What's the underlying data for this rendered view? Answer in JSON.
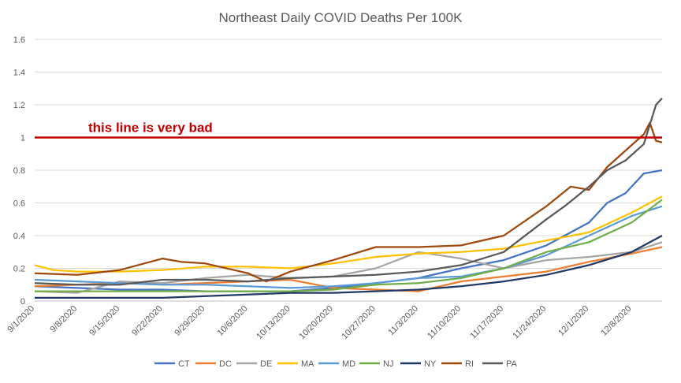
{
  "chart_data": {
    "type": "line",
    "title": "Northeast Daily COVID Deaths Per 100K",
    "xlabel": "",
    "ylabel": "",
    "ylim": [
      0,
      1.6
    ],
    "yticks": [
      0,
      0.2,
      0.4,
      0.6,
      0.8,
      1,
      1.2,
      1.4,
      1.6
    ],
    "ytick_labels": [
      "0",
      "0.2",
      "0.4",
      "0.6",
      "0.8",
      "1",
      "1.2",
      "1.4",
      "1.6"
    ],
    "x_tick_labels": [
      "9/1/2020",
      "9/8/2020",
      "9/15/2020",
      "9/22/2020",
      "9/29/2020",
      "10/6/2020",
      "10/13/2020",
      "10/20/2020",
      "10/27/2020",
      "11/3/2020",
      "11/10/2020",
      "11/17/2020",
      "11/24/2020",
      "12/1/2020",
      "12/8/2020"
    ],
    "x_start": "9/1/2020",
    "x_end": "12/13/2020",
    "grid": true,
    "legend_position": "bottom",
    "reference_line": {
      "value": 1,
      "label": "this line is very bad",
      "color": "#C00000"
    },
    "series": [
      {
        "name": "CT",
        "color": "#4472C4",
        "points": [
          [
            "9/1/2020",
            0.09
          ],
          [
            "9/8/2020",
            0.08
          ],
          [
            "9/15/2020",
            0.07
          ],
          [
            "9/22/2020",
            0.07
          ],
          [
            "9/29/2020",
            0.06
          ],
          [
            "10/6/2020",
            0.06
          ],
          [
            "10/13/2020",
            0.06
          ],
          [
            "10/20/2020",
            0.08
          ],
          [
            "10/27/2020",
            0.11
          ],
          [
            "11/3/2020",
            0.14
          ],
          [
            "11/10/2020",
            0.2
          ],
          [
            "11/17/2020",
            0.25
          ],
          [
            "11/24/2020",
            0.34
          ],
          [
            "12/1/2020",
            0.48
          ],
          [
            "12/4/2020",
            0.6
          ],
          [
            "12/7/2020",
            0.66
          ],
          [
            "12/10/2020",
            0.78
          ],
          [
            "12/13/2020",
            0.8
          ]
        ]
      },
      {
        "name": "DC",
        "color": "#ED7D31",
        "points": [
          [
            "9/1/2020",
            0.09
          ],
          [
            "9/8/2020",
            0.1
          ],
          [
            "9/15/2020",
            0.11
          ],
          [
            "9/22/2020",
            0.1
          ],
          [
            "9/29/2020",
            0.11
          ],
          [
            "10/6/2020",
            0.12
          ],
          [
            "10/13/2020",
            0.13
          ],
          [
            "10/20/2020",
            0.08
          ],
          [
            "10/27/2020",
            0.07
          ],
          [
            "11/3/2020",
            0.06
          ],
          [
            "11/10/2020",
            0.12
          ],
          [
            "11/17/2020",
            0.15
          ],
          [
            "11/24/2020",
            0.18
          ],
          [
            "12/1/2020",
            0.24
          ],
          [
            "12/8/2020",
            0.29
          ],
          [
            "12/13/2020",
            0.33
          ]
        ]
      },
      {
        "name": "DE",
        "color": "#A5A5A5",
        "points": [
          [
            "9/1/2020",
            0.06
          ],
          [
            "9/8/2020",
            0.05
          ],
          [
            "9/15/2020",
            0.12
          ],
          [
            "9/22/2020",
            0.11
          ],
          [
            "9/29/2020",
            0.14
          ],
          [
            "10/6/2020",
            0.16
          ],
          [
            "10/13/2020",
            0.14
          ],
          [
            "10/20/2020",
            0.15
          ],
          [
            "10/27/2020",
            0.2
          ],
          [
            "11/3/2020",
            0.3
          ],
          [
            "11/10/2020",
            0.26
          ],
          [
            "11/17/2020",
            0.2
          ],
          [
            "11/24/2020",
            0.25
          ],
          [
            "12/1/2020",
            0.27
          ],
          [
            "12/8/2020",
            0.3
          ],
          [
            "12/13/2020",
            0.36
          ]
        ]
      },
      {
        "name": "MA",
        "color": "#FFC000",
        "points": [
          [
            "9/1/2020",
            0.22
          ],
          [
            "9/4/2020",
            0.19
          ],
          [
            "9/8/2020",
            0.18
          ],
          [
            "9/15/2020",
            0.18
          ],
          [
            "9/22/2020",
            0.19
          ],
          [
            "9/29/2020",
            0.21
          ],
          [
            "10/6/2020",
            0.21
          ],
          [
            "10/13/2020",
            0.2
          ],
          [
            "10/20/2020",
            0.23
          ],
          [
            "10/27/2020",
            0.27
          ],
          [
            "11/3/2020",
            0.29
          ],
          [
            "11/10/2020",
            0.3
          ],
          [
            "11/17/2020",
            0.32
          ],
          [
            "11/24/2020",
            0.37
          ],
          [
            "12/1/2020",
            0.42
          ],
          [
            "12/8/2020",
            0.54
          ],
          [
            "12/13/2020",
            0.64
          ]
        ]
      },
      {
        "name": "MD",
        "color": "#5B9BD5",
        "points": [
          [
            "9/1/2020",
            0.13
          ],
          [
            "9/8/2020",
            0.12
          ],
          [
            "9/15/2020",
            0.11
          ],
          [
            "9/22/2020",
            0.1
          ],
          [
            "9/29/2020",
            0.1
          ],
          [
            "10/6/2020",
            0.09
          ],
          [
            "10/13/2020",
            0.08
          ],
          [
            "10/20/2020",
            0.09
          ],
          [
            "10/27/2020",
            0.11
          ],
          [
            "11/3/2020",
            0.14
          ],
          [
            "11/10/2020",
            0.15
          ],
          [
            "11/17/2020",
            0.2
          ],
          [
            "11/24/2020",
            0.28
          ],
          [
            "12/1/2020",
            0.4
          ],
          [
            "12/8/2020",
            0.52
          ],
          [
            "12/13/2020",
            0.58
          ]
        ]
      },
      {
        "name": "NJ",
        "color": "#70AD47",
        "points": [
          [
            "9/1/2020",
            0.06
          ],
          [
            "9/8/2020",
            0.06
          ],
          [
            "9/15/2020",
            0.06
          ],
          [
            "9/22/2020",
            0.06
          ],
          [
            "9/29/2020",
            0.06
          ],
          [
            "10/6/2020",
            0.06
          ],
          [
            "10/13/2020",
            0.06
          ],
          [
            "10/20/2020",
            0.07
          ],
          [
            "10/27/2020",
            0.1
          ],
          [
            "11/3/2020",
            0.11
          ],
          [
            "11/10/2020",
            0.14
          ],
          [
            "11/17/2020",
            0.2
          ],
          [
            "11/24/2020",
            0.3
          ],
          [
            "12/1/2020",
            0.36
          ],
          [
            "12/8/2020",
            0.48
          ],
          [
            "12/13/2020",
            0.62
          ]
        ]
      },
      {
        "name": "NY",
        "color": "#203864",
        "points": [
          [
            "9/1/2020",
            0.02
          ],
          [
            "9/8/2020",
            0.02
          ],
          [
            "9/15/2020",
            0.02
          ],
          [
            "9/22/2020",
            0.02
          ],
          [
            "9/29/2020",
            0.03
          ],
          [
            "10/6/2020",
            0.04
          ],
          [
            "10/13/2020",
            0.05
          ],
          [
            "10/20/2020",
            0.05
          ],
          [
            "10/27/2020",
            0.06
          ],
          [
            "11/3/2020",
            0.07
          ],
          [
            "11/10/2020",
            0.09
          ],
          [
            "11/17/2020",
            0.12
          ],
          [
            "11/24/2020",
            0.16
          ],
          [
            "12/1/2020",
            0.22
          ],
          [
            "12/8/2020",
            0.3
          ],
          [
            "12/13/2020",
            0.4
          ]
        ]
      },
      {
        "name": "RI",
        "color": "#9E480E",
        "points": [
          [
            "9/1/2020",
            0.17
          ],
          [
            "9/8/2020",
            0.16
          ],
          [
            "9/15/2020",
            0.19
          ],
          [
            "9/22/2020",
            0.26
          ],
          [
            "9/25/2020",
            0.24
          ],
          [
            "9/29/2020",
            0.23
          ],
          [
            "10/6/2020",
            0.17
          ],
          [
            "10/9/2020",
            0.12
          ],
          [
            "10/13/2020",
            0.18
          ],
          [
            "10/20/2020",
            0.25
          ],
          [
            "10/27/2020",
            0.33
          ],
          [
            "11/3/2020",
            0.33
          ],
          [
            "11/10/2020",
            0.34
          ],
          [
            "11/17/2020",
            0.4
          ],
          [
            "11/24/2020",
            0.58
          ],
          [
            "11/28/2020",
            0.7
          ],
          [
            "12/1/2020",
            0.68
          ],
          [
            "12/4/2020",
            0.82
          ],
          [
            "12/7/2020",
            0.92
          ],
          [
            "12/10/2020",
            1.02
          ],
          [
            "12/11/2020",
            1.09
          ],
          [
            "12/12/2020",
            0.98
          ],
          [
            "12/13/2020",
            0.97
          ]
        ]
      },
      {
        "name": "PA",
        "color": "#595959",
        "points": [
          [
            "9/1/2020",
            0.11
          ],
          [
            "9/8/2020",
            0.1
          ],
          [
            "9/15/2020",
            0.1
          ],
          [
            "9/22/2020",
            0.13
          ],
          [
            "9/29/2020",
            0.13
          ],
          [
            "10/6/2020",
            0.12
          ],
          [
            "10/13/2020",
            0.14
          ],
          [
            "10/20/2020",
            0.15
          ],
          [
            "10/27/2020",
            0.16
          ],
          [
            "11/3/2020",
            0.18
          ],
          [
            "11/10/2020",
            0.22
          ],
          [
            "11/17/2020",
            0.3
          ],
          [
            "11/24/2020",
            0.5
          ],
          [
            "11/27/2020",
            0.58
          ],
          [
            "12/1/2020",
            0.7
          ],
          [
            "12/4/2020",
            0.8
          ],
          [
            "12/7/2020",
            0.86
          ],
          [
            "12/10/2020",
            0.96
          ],
          [
            "12/12/2020",
            1.2
          ],
          [
            "12/13/2020",
            1.24
          ]
        ]
      }
    ]
  }
}
